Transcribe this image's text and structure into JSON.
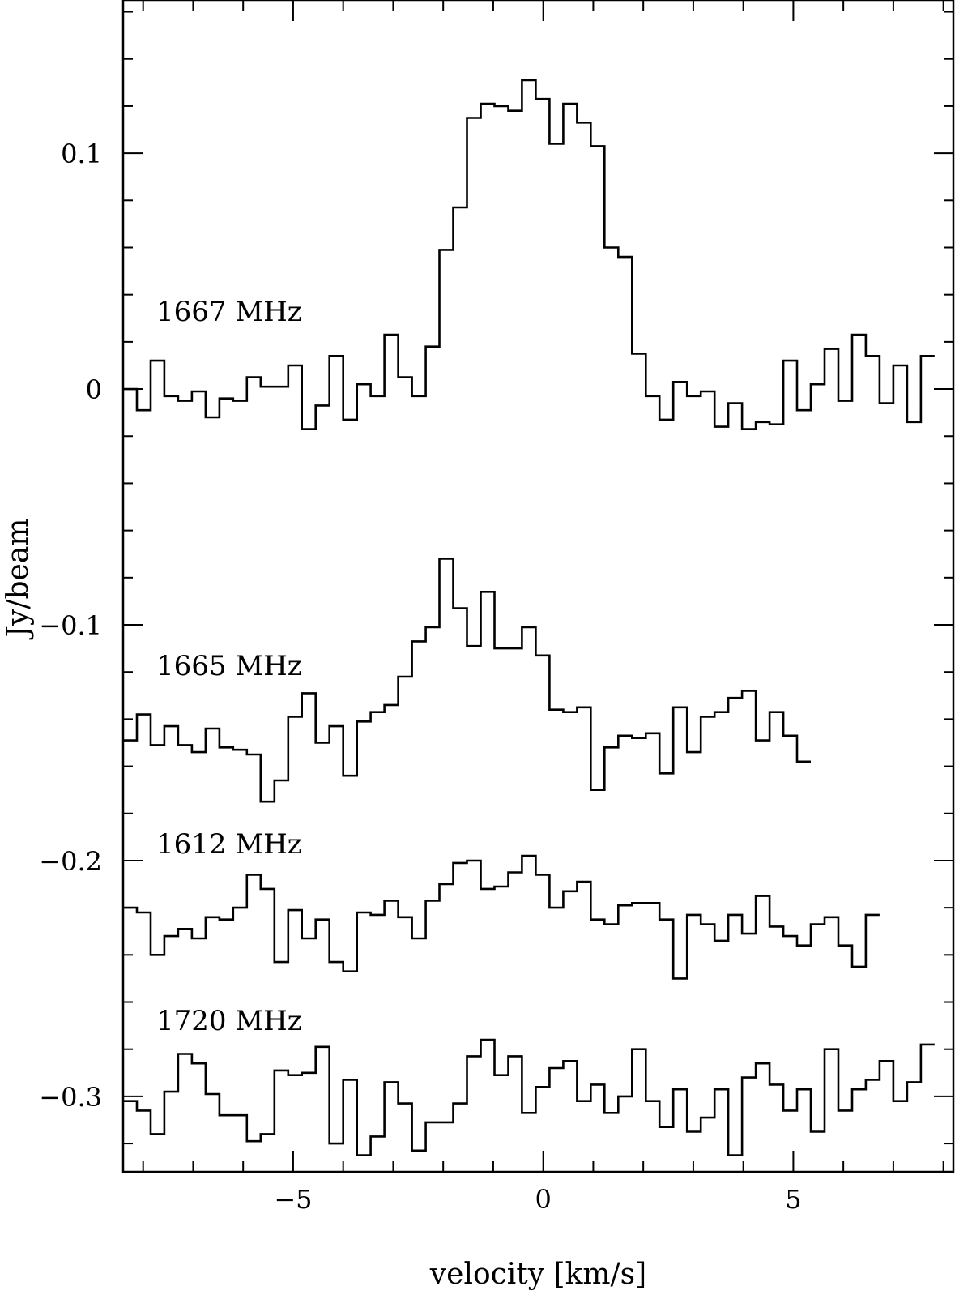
{
  "chart_data": {
    "type": "line",
    "style": "step",
    "xlabel": "velocity [km/s]",
    "ylabel": "Jy/beam",
    "xlim": [
      -8.4,
      8.2
    ],
    "ylim": [
      -0.332,
      0.165
    ],
    "xticks_major": [
      -5,
      0,
      5
    ],
    "xtick_labels": [
      "−5",
      "0",
      "5"
    ],
    "yticks_major": [
      0.1,
      0,
      -0.1,
      -0.2,
      -0.3
    ],
    "ytick_labels": [
      "0.1",
      "0",
      "−0.1",
      "−0.2",
      "−0.3"
    ],
    "grid": false,
    "bin_width": 0.275,
    "x_start": -8.4,
    "series": [
      {
        "name": "1667 MHz",
        "values": [
          0.0,
          -0.009,
          0.012,
          -0.003,
          -0.005,
          -0.001,
          -0.012,
          -0.004,
          -0.005,
          0.005,
          0.001,
          0.001,
          0.01,
          -0.017,
          -0.007,
          0.014,
          -0.013,
          0.002,
          -0.003,
          0.023,
          0.005,
          -0.003,
          0.018,
          0.059,
          0.077,
          0.115,
          0.121,
          0.12,
          0.118,
          0.131,
          0.123,
          0.104,
          0.121,
          0.113,
          0.103,
          0.06,
          0.056,
          0.015,
          -0.003,
          -0.013,
          0.003,
          -0.003,
          -0.001,
          -0.016,
          -0.006,
          -0.017,
          -0.014,
          -0.015,
          0.012,
          -0.009,
          0.002,
          0.017,
          -0.005,
          0.023,
          0.014,
          -0.006,
          0.01,
          -0.014,
          0.014
        ]
      },
      {
        "name": "1665 MHz",
        "values": [
          -0.149,
          -0.138,
          -0.151,
          -0.143,
          -0.151,
          -0.154,
          -0.144,
          -0.152,
          -0.153,
          -0.155,
          -0.175,
          -0.166,
          -0.139,
          -0.129,
          -0.15,
          -0.143,
          -0.164,
          -0.141,
          -0.137,
          -0.134,
          -0.122,
          -0.107,
          -0.101,
          -0.072,
          -0.093,
          -0.109,
          -0.086,
          -0.11,
          -0.11,
          -0.101,
          -0.113,
          -0.136,
          -0.137,
          -0.135,
          -0.17,
          -0.152,
          -0.147,
          -0.148,
          -0.146,
          -0.163,
          -0.135,
          -0.154,
          -0.139,
          -0.137,
          -0.131,
          -0.128,
          -0.149,
          -0.137,
          -0.147,
          -0.158
        ]
      },
      {
        "name": "1612 MHz",
        "values": [
          -0.22,
          -0.222,
          -0.24,
          -0.232,
          -0.229,
          -0.233,
          -0.224,
          -0.225,
          -0.22,
          -0.206,
          -0.212,
          -0.243,
          -0.221,
          -0.233,
          -0.225,
          -0.243,
          -0.247,
          -0.222,
          -0.223,
          -0.217,
          -0.224,
          -0.233,
          -0.217,
          -0.21,
          -0.201,
          -0.2,
          -0.212,
          -0.211,
          -0.205,
          -0.198,
          -0.206,
          -0.22,
          -0.213,
          -0.209,
          -0.225,
          -0.227,
          -0.219,
          -0.218,
          -0.218,
          -0.225,
          -0.25,
          -0.223,
          -0.227,
          -0.234,
          -0.223,
          -0.231,
          -0.215,
          -0.228,
          -0.232,
          -0.236,
          -0.227,
          -0.224,
          -0.236,
          -0.245,
          -0.223
        ]
      },
      {
        "name": "1720 MHz",
        "values": [
          -0.302,
          -0.306,
          -0.316,
          -0.298,
          -0.282,
          -0.286,
          -0.299,
          -0.308,
          -0.308,
          -0.319,
          -0.316,
          -0.289,
          -0.291,
          -0.29,
          -0.279,
          -0.32,
          -0.293,
          -0.325,
          -0.317,
          -0.294,
          -0.303,
          -0.323,
          -0.311,
          -0.311,
          -0.303,
          -0.283,
          -0.276,
          -0.291,
          -0.283,
          -0.307,
          -0.296,
          -0.288,
          -0.285,
          -0.302,
          -0.295,
          -0.307,
          -0.3,
          -0.28,
          -0.302,
          -0.313,
          -0.297,
          -0.315,
          -0.309,
          -0.297,
          -0.325,
          -0.292,
          -0.286,
          -0.295,
          -0.306,
          -0.297,
          -0.315,
          -0.28,
          -0.306,
          -0.297,
          -0.293,
          -0.285,
          -0.302,
          -0.294,
          -0.278
        ]
      }
    ]
  }
}
